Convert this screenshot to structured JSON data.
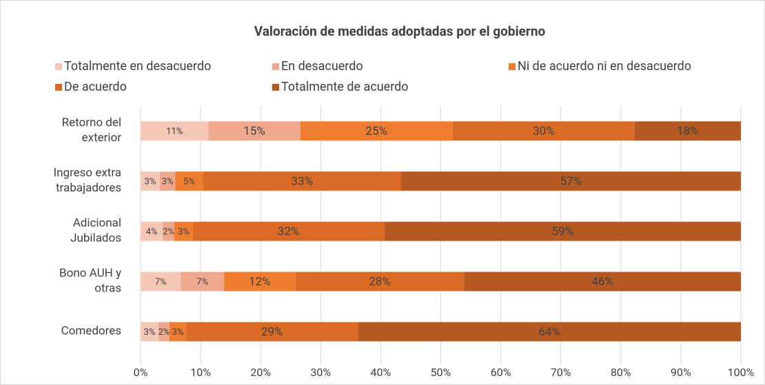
{
  "chart_data": {
    "type": "stacked_bar_horizontal",
    "title": "Valoración de medidas adoptadas por el gobierno",
    "categories": [
      "Retorno del exterior",
      "Ingreso extra trabajadores",
      "Adicional Jubilados",
      "Bono AUH y otras",
      "Comedores"
    ],
    "series": [
      {
        "name": "Totalmente en desacuerdo",
        "color": "#f4c7b6",
        "values": [
          11.3,
          3.2,
          3.7,
          6.7,
          3.0
        ],
        "value_labels": [
          "11%",
          "3%",
          "4%",
          "7%",
          "3%"
        ]
      },
      {
        "name": "En desacuerdo",
        "color": "#eda88e",
        "values": [
          15.3,
          2.6,
          1.9,
          7.2,
          1.8
        ],
        "value_labels": [
          "15%",
          "3%",
          "2%",
          "7%",
          "2%"
        ]
      },
      {
        "name": "Ni de acuerdo ni en desacuerdo",
        "color": "#ee7d31",
        "values": [
          25.4,
          4.6,
          3.1,
          11.9,
          2.8
        ],
        "value_labels": [
          "25%",
          "5%",
          "3%",
          "12%",
          "3%"
        ]
      },
      {
        "name": "De acuerdo",
        "color": "#d96b27",
        "values": [
          30.3,
          33.0,
          31.9,
          28.1,
          28.6
        ],
        "value_labels": [
          "30%",
          "33%",
          "32%",
          "28%",
          "29%"
        ]
      },
      {
        "name": "Totalmente de acuerdo",
        "color": "#b45a22",
        "values": [
          17.7,
          56.6,
          59.4,
          46.1,
          63.8
        ],
        "value_labels": [
          "18%",
          "57%",
          "59%",
          "46%",
          "64%"
        ]
      }
    ],
    "xlim": [
      0,
      100
    ],
    "xticks": [
      {
        "value": 0,
        "label": "0%"
      },
      {
        "value": 10,
        "label": "10%"
      },
      {
        "value": 20,
        "label": "20%"
      },
      {
        "value": 30,
        "label": "30%"
      },
      {
        "value": 40,
        "label": "40%"
      },
      {
        "value": 50,
        "label": "50%"
      },
      {
        "value": 60,
        "label": "60%"
      },
      {
        "value": 70,
        "label": "70%"
      },
      {
        "value": 80,
        "label": "80%"
      },
      {
        "value": 90,
        "label": "90%"
      },
      {
        "value": 100,
        "label": "100%"
      }
    ],
    "grid": true,
    "legend": "top"
  }
}
